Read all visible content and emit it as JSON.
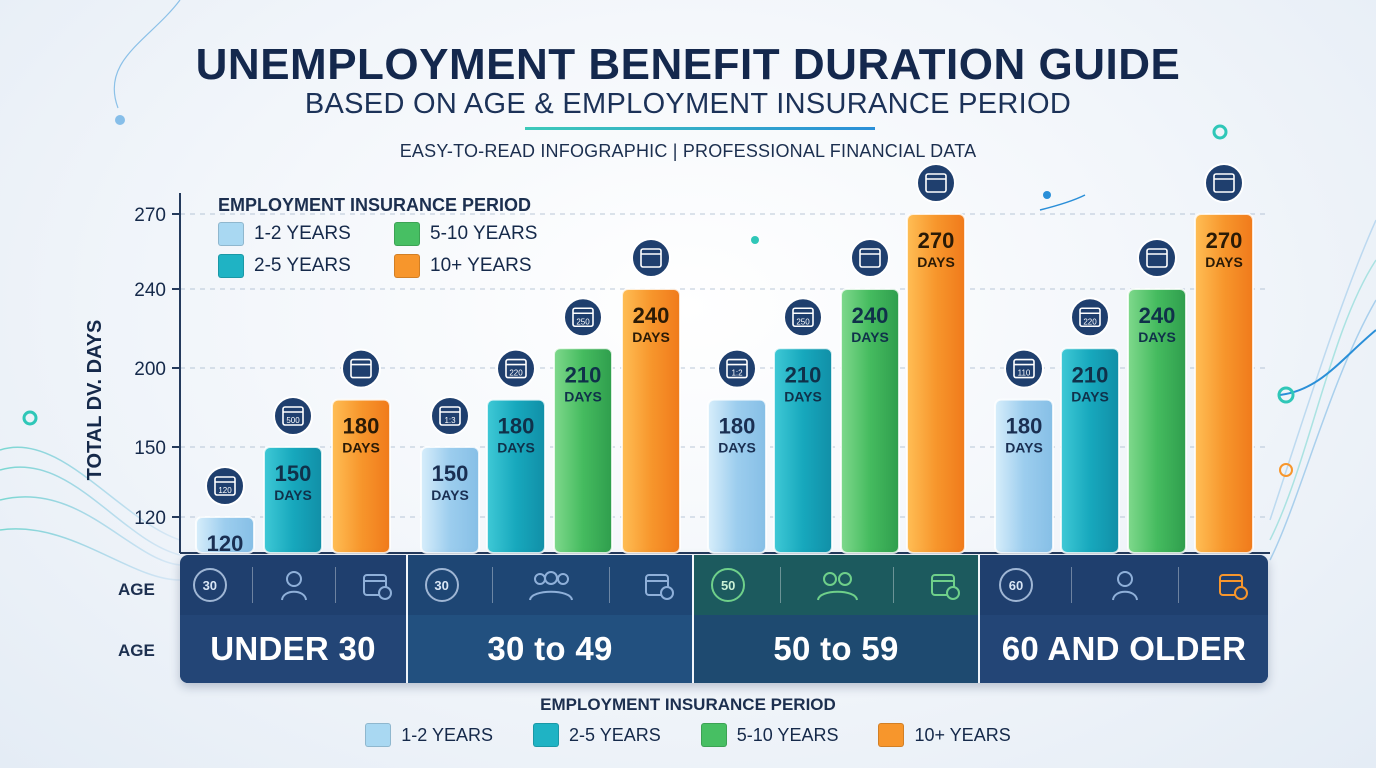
{
  "header": {
    "title": "UNEMPLOYMENT BENEFIT DURATION GUIDE",
    "subtitle": "BASED ON AGE & EMPLOYMENT INSURANCE PERIOD",
    "tagline": "EASY-TO-READ INFOGRAPHIC | PROFESSIONAL FINANCIAL DATA"
  },
  "legend": {
    "title": "EMPLOYMENT INSURANCE PERIOD",
    "items": [
      "1-2 YEARS",
      "5-10 YEARS",
      "2-5 YEARS",
      "10+ YEARS"
    ]
  },
  "bottom_legend": {
    "title": "EMPLOYMENT INSURANCE PERIOD",
    "items": [
      "1-2 YEARS",
      "2-5 YEARS",
      "5-10 YEARS",
      "10+ YEARS"
    ]
  },
  "age_row": {
    "label_top": "AGE",
    "label_bottom": "AGE",
    "groups": [
      {
        "circle": "30",
        "name": "UNDER 30"
      },
      {
        "circle": "30",
        "name": "30 to 49"
      },
      {
        "circle": "50",
        "name": "50 to 59"
      },
      {
        "circle": "60",
        "name": "60 AND OLDER"
      }
    ]
  },
  "colors": {
    "p1_2": "#a9d8f2",
    "p2_5": "#1fb3c4",
    "p5_10": "#47bf63",
    "p10_plus": "#f7962c",
    "navy": "#1e3c6b"
  },
  "icons": [
    "calendar-icon",
    "person-icon",
    "group-icon",
    "calendar-clock-icon"
  ],
  "chart_data": {
    "type": "bar",
    "title": "UNEMPLOYMENT BENEFIT DURATION GUIDE",
    "ylabel": "TOTAL DV. DAYS",
    "xlabel": "AGE",
    "yticks": [
      120,
      150,
      200,
      240,
      270
    ],
    "unit_label": "DAYS",
    "categories": [
      "UNDER 30",
      "30 to 49",
      "50 to 59",
      "60 AND OLDER"
    ],
    "series": [
      {
        "name": "1-2 YEARS",
        "values": [
          120,
          150,
          180,
          180
        ]
      },
      {
        "name": "2-5 YEARS",
        "values": [
          150,
          180,
          210,
          210
        ]
      },
      {
        "name": "5-10 YEARS",
        "values": [
          null,
          210,
          240,
          240
        ]
      },
      {
        "name": "10+ YEARS",
        "values": [
          180,
          240,
          270,
          270
        ]
      }
    ],
    "icon_numbers": [
      [
        "120",
        "500",
        null
      ],
      [
        "1:3",
        "220",
        "250",
        null
      ],
      [
        "1:2",
        "250",
        null,
        null
      ],
      [
        "110",
        "220",
        null,
        null
      ]
    ]
  }
}
